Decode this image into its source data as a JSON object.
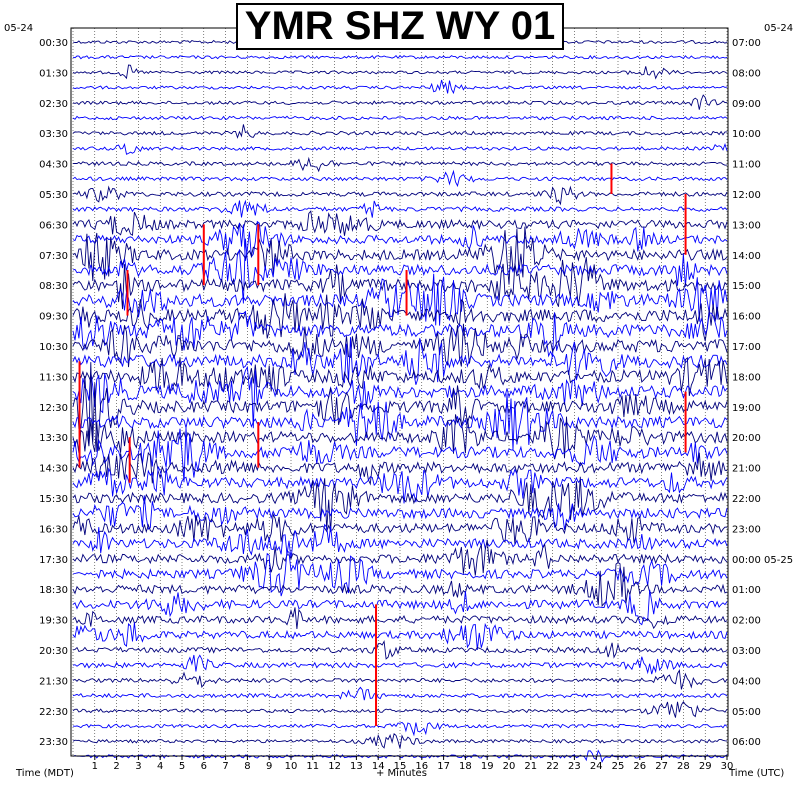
{
  "chart_data": {
    "type": "line",
    "title": "YMR SHZ WY 01",
    "xlabel": "+ Minutes",
    "left_axis_label": "Time (MDT)",
    "right_axis_label": "Time (UTC)",
    "date_left": "05-24",
    "date_right": "05-24",
    "date_right_rollover": "05-25",
    "xlim": [
      0,
      30
    ],
    "x_ticks": [
      1,
      2,
      3,
      4,
      5,
      6,
      7,
      8,
      9,
      10,
      11,
      12,
      13,
      14,
      15,
      16,
      17,
      18,
      19,
      20,
      21,
      22,
      23,
      24,
      25,
      26,
      27,
      28,
      29,
      30
    ],
    "left_time_labels": [
      "00:30",
      "01:30",
      "02:30",
      "03:30",
      "04:30",
      "05:30",
      "06:30",
      "07:30",
      "08:30",
      "09:30",
      "10:30",
      "11:30",
      "12:30",
      "13:30",
      "14:30",
      "15:30",
      "16:30",
      "17:30",
      "18:30",
      "19:30",
      "20:30",
      "21:30",
      "22:30",
      "23:30"
    ],
    "right_time_labels": [
      "07:00",
      "08:00",
      "09:00",
      "10:00",
      "11:00",
      "12:00",
      "13:00",
      "14:00",
      "15:00",
      "16:00",
      "17:00",
      "18:00",
      "19:00",
      "20:00",
      "21:00",
      "22:00",
      "23:00",
      "00:00 05-25",
      "01:00",
      "02:00",
      "03:00",
      "04:00",
      "05:00",
      "06:00"
    ],
    "trace_count": 48,
    "trace_colors": [
      "#00007c",
      "#0000ff"
    ],
    "clip_color": "#ff0000",
    "grid": true,
    "activity_by_hour": [
      0.06,
      0.05,
      0.09,
      0.1,
      0.12,
      0.18,
      0.55,
      0.75,
      0.9,
      0.95,
      0.95,
      0.9,
      0.85,
      0.8,
      0.75,
      0.7,
      0.65,
      0.6,
      0.55,
      0.45,
      0.25,
      0.15,
      0.1,
      0.08
    ]
  }
}
